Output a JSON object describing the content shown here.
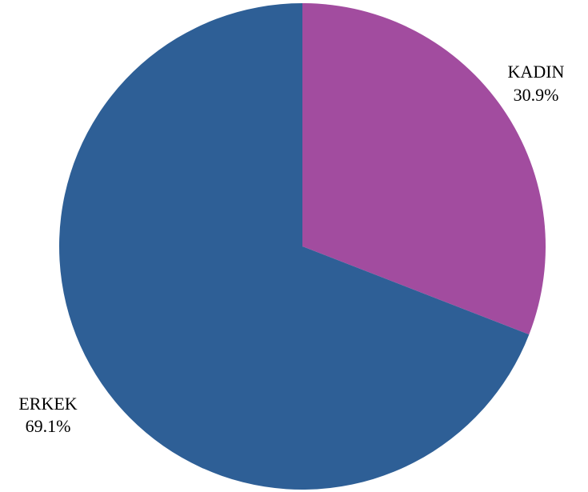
{
  "chart_data": {
    "type": "pie",
    "slices": [
      {
        "label": "KADIN",
        "value": 30.9,
        "value_label": "30.9%",
        "color": "#a24c9f"
      },
      {
        "label": "ERKEK",
        "value": 69.1,
        "value_label": "69.1%",
        "color": "#2e5f96"
      }
    ],
    "start_angle": "12 o'clock",
    "direction": "clockwise",
    "legend": "none"
  }
}
